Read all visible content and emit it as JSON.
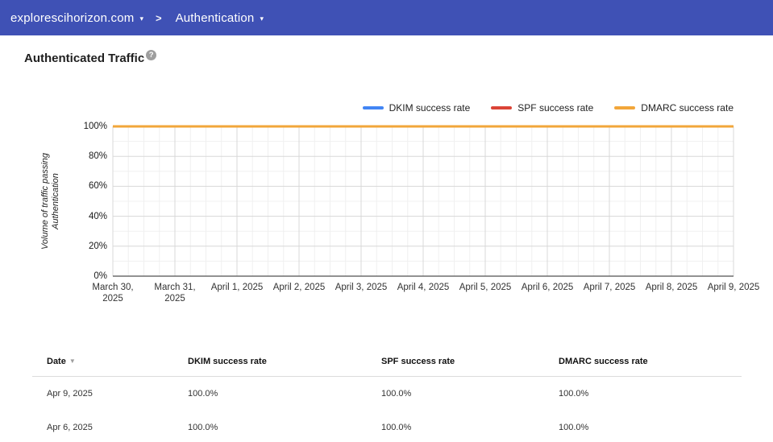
{
  "header": {
    "domain": "explorescihorizon.com",
    "caret": "▾",
    "separator": ">",
    "section": "Authentication"
  },
  "page": {
    "title": "Authenticated Traffic",
    "help_glyph": "?"
  },
  "colors": {
    "topbar_bg": "#3F51B5",
    "dkim": "#4285F4",
    "spf": "#DB4437",
    "dmarc": "#F2A63A"
  },
  "chart_data": {
    "type": "line",
    "title": "Authenticated Traffic",
    "ylabel": "Volume of traffic passing Authentication",
    "xlabel": "",
    "ylim": [
      0,
      100
    ],
    "grid": true,
    "legend_position": "top-right",
    "yticks": [
      "100%",
      "80%",
      "60%",
      "40%",
      "20%",
      "0%"
    ],
    "x_labels": [
      "March 30, 2025",
      "March 31, 2025",
      "April 1, 2025",
      "April 2, 2025",
      "April 3, 2025",
      "April 4, 2025",
      "April 5, 2025",
      "April 6, 2025",
      "April 7, 2025",
      "April 8, 2025",
      "April 9, 2025"
    ],
    "series": [
      {
        "name": "DKIM success rate",
        "color": "#4285F4",
        "values": [
          100,
          100,
          100,
          100,
          100,
          100,
          100,
          100,
          100,
          100,
          100
        ]
      },
      {
        "name": "SPF success rate",
        "color": "#DB4437",
        "values": [
          100,
          100,
          100,
          100,
          100,
          100,
          100,
          100,
          100,
          100,
          100
        ]
      },
      {
        "name": "DMARC success rate",
        "color": "#F2A63A",
        "values": [
          100,
          100,
          100,
          100,
          100,
          100,
          100,
          100,
          100,
          100,
          100
        ]
      }
    ]
  },
  "table": {
    "columns": [
      "Date",
      "DKIM success rate",
      "SPF success rate",
      "DMARC success rate"
    ],
    "sort": {
      "column": "Date",
      "indicator": "▼"
    },
    "rows": [
      [
        "Apr 9, 2025",
        "100.0%",
        "100.0%",
        "100.0%"
      ],
      [
        "Apr 6, 2025",
        "100.0%",
        "100.0%",
        "100.0%"
      ]
    ]
  }
}
